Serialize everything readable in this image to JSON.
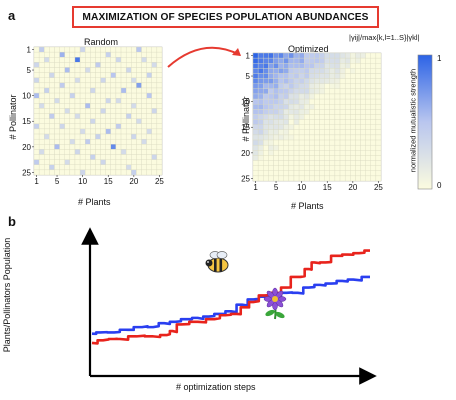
{
  "panel_a": {
    "label": "a",
    "title": "MAXIMIZATION OF SPECIES POPULATION ABUNDANCES",
    "left_title": "Random",
    "right_title": "Optimized",
    "ylabel": "# Pollinator",
    "xlabel": "# Plants",
    "x_ticks": [
      "1",
      "5",
      "10",
      "15",
      "20",
      "25"
    ],
    "y_ticks": [
      "1",
      "5",
      "10",
      "15",
      "20",
      "25"
    ],
    "colorbar_top_label": "|γij|/max{k,l=1..S}|γkl|",
    "colorbar_side_label": "normalized mutualistic strength",
    "colorbar_max": "1",
    "colorbar_min": "0",
    "colors": {
      "low": "#fbfbdf",
      "high": "#2c63e6",
      "arrow": "#e63a30"
    }
  },
  "panel_b": {
    "label": "b",
    "ylabel": "Plants/Pollinators Population",
    "xlabel": "# optimization steps",
    "bee_icon": "bee-icon",
    "flower_icon": "flower-icon",
    "colors": {
      "red": "#e8231c",
      "blue": "#2a3ff0"
    }
  },
  "chart_data": [
    {
      "type": "heatmap",
      "title": "Random",
      "xlabel": "# Plants",
      "ylabel": "# Pollinator",
      "size": 25,
      "note": "sparse random interaction matrix",
      "cells": [
        [
          1,
          2,
          0.45
        ],
        [
          1,
          10,
          0.35
        ],
        [
          1,
          21,
          0.5
        ],
        [
          2,
          6,
          0.6
        ],
        [
          2,
          15,
          0.4
        ],
        [
          3,
          3,
          0.3
        ],
        [
          3,
          9,
          0.9
        ],
        [
          3,
          17,
          0.35
        ],
        [
          3,
          22,
          0.3
        ],
        [
          4,
          1,
          0.35
        ],
        [
          4,
          13,
          0.45
        ],
        [
          4,
          24,
          0.3
        ],
        [
          5,
          7,
          0.55
        ],
        [
          5,
          11,
          0.3
        ],
        [
          5,
          19,
          0.35
        ],
        [
          6,
          4,
          0.35
        ],
        [
          6,
          16,
          0.5
        ],
        [
          6,
          23,
          0.4
        ],
        [
          7,
          1,
          0.35
        ],
        [
          7,
          9,
          0.3
        ],
        [
          7,
          14,
          0.35
        ],
        [
          7,
          20,
          0.3
        ],
        [
          8,
          6,
          0.45
        ],
        [
          8,
          21,
          0.7
        ],
        [
          9,
          3,
          0.4
        ],
        [
          9,
          12,
          0.35
        ],
        [
          9,
          18,
          0.55
        ],
        [
          10,
          1,
          0.55
        ],
        [
          10,
          8,
          0.4
        ],
        [
          10,
          23,
          0.5
        ],
        [
          11,
          5,
          0.3
        ],
        [
          11,
          15,
          0.35
        ],
        [
          11,
          17,
          0.3
        ],
        [
          12,
          2,
          0.3
        ],
        [
          12,
          11,
          0.55
        ],
        [
          12,
          20,
          0.3
        ],
        [
          13,
          7,
          0.3
        ],
        [
          13,
          14,
          0.35
        ],
        [
          13,
          24,
          0.35
        ],
        [
          14,
          4,
          0.45
        ],
        [
          14,
          9,
          0.3
        ],
        [
          14,
          19,
          0.4
        ],
        [
          15,
          12,
          0.35
        ],
        [
          15,
          21,
          0.3
        ],
        [
          16,
          1,
          0.4
        ],
        [
          16,
          6,
          0.35
        ],
        [
          16,
          17,
          0.45
        ],
        [
          17,
          10,
          0.3
        ],
        [
          17,
          15,
          0.55
        ],
        [
          17,
          23,
          0.3
        ],
        [
          18,
          3,
          0.3
        ],
        [
          18,
          13,
          0.4
        ],
        [
          18,
          20,
          0.35
        ],
        [
          19,
          8,
          0.3
        ],
        [
          19,
          11,
          0.45
        ],
        [
          19,
          22,
          0.3
        ],
        [
          20,
          5,
          0.55
        ],
        [
          20,
          16,
          0.8
        ],
        [
          21,
          2,
          0.3
        ],
        [
          21,
          9,
          0.35
        ],
        [
          21,
          18,
          0.3
        ],
        [
          22,
          12,
          0.4
        ],
        [
          22,
          24,
          0.35
        ],
        [
          23,
          1,
          0.45
        ],
        [
          23,
          7,
          0.3
        ],
        [
          23,
          14,
          0.35
        ],
        [
          24,
          4,
          0.4
        ],
        [
          24,
          19,
          0.3
        ],
        [
          25,
          10,
          0.35
        ],
        [
          25,
          20,
          0.4
        ]
      ]
    },
    {
      "type": "heatmap",
      "title": "Optimized",
      "xlabel": "# Plants",
      "ylabel": "# Pollinator",
      "size": 25,
      "note": "nested structure, strongest interactions at low indices (top-left)",
      "value_rule": "max(0, 1 - (i+j-2)/22) with small noise, i=row, j=column"
    },
    {
      "type": "line",
      "xlabel": "# optimization steps",
      "ylabel": "Plants/Pollinators Population",
      "x_range": [
        0,
        100
      ],
      "y_range": [
        0,
        100
      ],
      "series": [
        {
          "color": "#e8231c",
          "x": [
            0,
            4,
            8,
            10,
            16,
            22,
            27,
            29,
            32,
            38,
            44,
            48,
            52,
            55,
            58,
            62,
            66,
            70,
            73,
            75,
            78,
            80,
            84,
            88,
            92,
            96,
            100
          ],
          "y": [
            22,
            24,
            25,
            25,
            27,
            27,
            28,
            31,
            36,
            38,
            40,
            43,
            44,
            49,
            53,
            58,
            60,
            64,
            72,
            72,
            78,
            83,
            83,
            88,
            89,
            90,
            92
          ]
        },
        {
          "color": "#2a3ff0",
          "x": [
            0,
            3,
            8,
            12,
            18,
            22,
            26,
            30,
            34,
            38,
            42,
            46,
            50,
            54,
            58,
            62,
            66,
            70,
            74,
            78,
            82,
            86,
            90,
            94,
            100
          ],
          "y": [
            29,
            30,
            30,
            32,
            34,
            34,
            37,
            38,
            40,
            41,
            42,
            44,
            46,
            51,
            55,
            57,
            58,
            60,
            60,
            64,
            66,
            67,
            69,
            70,
            72
          ]
        }
      ]
    }
  ]
}
